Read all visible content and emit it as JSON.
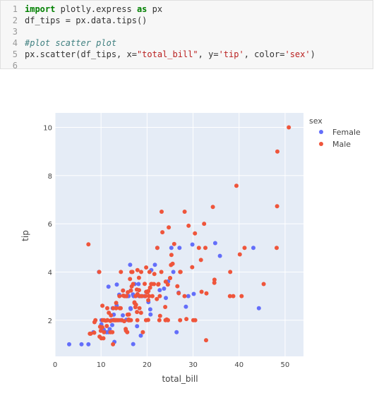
{
  "code_cell": {
    "lines": [
      {
        "no": "1",
        "tokens": [
          {
            "t": "import",
            "c": "kw"
          },
          {
            "t": " plotly.express ",
            "c": "op"
          },
          {
            "t": "as",
            "c": "kw"
          },
          {
            "t": " px",
            "c": "op"
          }
        ]
      },
      {
        "no": "2",
        "tokens": [
          {
            "t": "df_tips = px.data.tips()",
            "c": "op"
          }
        ]
      },
      {
        "no": "3",
        "tokens": []
      },
      {
        "no": "4",
        "tokens": [
          {
            "t": "#plot scatter plot",
            "c": "com"
          }
        ]
      },
      {
        "no": "5",
        "tokens": [
          {
            "t": "px.scatter(df_tips, x=",
            "c": "op"
          },
          {
            "t": "\"total_bill\"",
            "c": "str"
          },
          {
            "t": ", y=",
            "c": "op"
          },
          {
            "t": "'tip'",
            "c": "str"
          },
          {
            "t": ", color=",
            "c": "op"
          },
          {
            "t": "'sex'",
            "c": "str"
          },
          {
            "t": ")",
            "c": "op"
          }
        ]
      },
      {
        "no": "6",
        "tokens": []
      }
    ]
  },
  "chart_data": {
    "type": "scatter",
    "xlabel": "total_bill",
    "ylabel": "tip",
    "xlim": [
      0,
      54
    ],
    "ylim": [
      0.5,
      10.6
    ],
    "xticks": [
      0,
      10,
      20,
      30,
      40,
      50
    ],
    "yticks": [
      2,
      4,
      6,
      8,
      10
    ],
    "grid": true,
    "legend_title": "sex",
    "legend_placement": "right",
    "colors": {
      "plot_bg": "#E5ECF6",
      "grid": "#ffffff",
      "Female": "#636EFA",
      "Male": "#EF553B"
    },
    "series": [
      {
        "name": "Female",
        "points": [
          [
            3.07,
            1.0
          ],
          [
            5.75,
            1.0
          ],
          [
            7.25,
            1.0
          ],
          [
            8.35,
            1.5
          ],
          [
            9.55,
            4.0
          ],
          [
            10.07,
            1.83
          ],
          [
            10.33,
            1.67
          ],
          [
            10.59,
            1.61
          ],
          [
            11.17,
            1.5
          ],
          [
            11.59,
            1.5
          ],
          [
            12.26,
            2.0
          ],
          [
            12.43,
            1.8
          ],
          [
            12.54,
            2.5
          ],
          [
            12.74,
            2.01
          ],
          [
            12.9,
            1.1
          ],
          [
            13.42,
            3.48
          ],
          [
            13.94,
            3.06
          ],
          [
            14.15,
            2.0
          ],
          [
            14.73,
            2.2
          ],
          [
            14.78,
            3.23
          ],
          [
            15.69,
            3.0
          ],
          [
            15.98,
            3.0
          ],
          [
            16.4,
            2.5
          ],
          [
            16.47,
            3.23
          ],
          [
            16.99,
            1.01
          ],
          [
            17.07,
            3.0
          ],
          [
            17.31,
            3.5
          ],
          [
            17.82,
            1.75
          ],
          [
            18.29,
            3.0
          ],
          [
            18.78,
            3.0
          ],
          [
            19.82,
            3.18
          ],
          [
            20.29,
            2.75
          ],
          [
            20.76,
            2.24
          ],
          [
            21.7,
            4.3
          ],
          [
            22.23,
            5.0
          ],
          [
            22.75,
            3.25
          ],
          [
            23.68,
            3.31
          ],
          [
            24.59,
            3.61
          ],
          [
            25.71,
            4.0
          ],
          [
            26.86,
            3.14
          ],
          [
            27.05,
            5.0
          ],
          [
            28.97,
            3.0
          ],
          [
            29.85,
            5.14
          ],
          [
            30.14,
            3.09
          ],
          [
            34.81,
            5.2
          ],
          [
            35.83,
            4.67
          ],
          [
            43.11,
            5.0
          ],
          [
            44.3,
            2.5
          ],
          [
            16.32,
            4.3
          ],
          [
            15.48,
            2.02
          ],
          [
            18.15,
            3.5
          ],
          [
            16.45,
            2.47
          ],
          [
            14.52,
            2.0
          ],
          [
            11.87,
            1.63
          ],
          [
            19.44,
            3.0
          ],
          [
            13.51,
            2.0
          ],
          [
            15.38,
            3.0
          ],
          [
            13.39,
            2.61
          ],
          [
            16.93,
            3.07
          ],
          [
            20.92,
            4.08
          ],
          [
            10.09,
            2.0
          ],
          [
            25.28,
            5.0
          ],
          [
            12.76,
            2.23
          ],
          [
            26.41,
            1.5
          ],
          [
            18.64,
            1.36
          ],
          [
            20.69,
            2.45
          ],
          [
            24.08,
            2.92
          ],
          [
            11.61,
            3.39
          ],
          [
            28.44,
            2.56
          ]
        ]
      },
      {
        "name": "Male",
        "points": [
          [
            7.25,
            5.15
          ],
          [
            7.56,
            1.44
          ],
          [
            7.74,
            1.44
          ],
          [
            8.52,
            1.48
          ],
          [
            8.58,
            1.92
          ],
          [
            8.77,
            2.0
          ],
          [
            9.6,
            4.0
          ],
          [
            9.68,
            1.32
          ],
          [
            9.78,
            1.73
          ],
          [
            9.94,
            1.56
          ],
          [
            10.07,
            1.25
          ],
          [
            10.27,
            1.71
          ],
          [
            10.29,
            2.6
          ],
          [
            10.34,
            2.0
          ],
          [
            10.51,
            1.25
          ],
          [
            10.63,
            2.0
          ],
          [
            10.65,
            1.5
          ],
          [
            11.02,
            1.98
          ],
          [
            11.24,
            1.76
          ],
          [
            11.35,
            2.5
          ],
          [
            11.38,
            2.0
          ],
          [
            11.69,
            2.31
          ],
          [
            12.03,
            1.5
          ],
          [
            12.16,
            2.2
          ],
          [
            12.46,
            1.5
          ],
          [
            12.6,
            1.0
          ],
          [
            12.66,
            2.5
          ],
          [
            12.69,
            2.0
          ],
          [
            13.0,
            2.0
          ],
          [
            13.03,
            2.0
          ],
          [
            13.13,
            2.0
          ],
          [
            13.27,
            2.5
          ],
          [
            13.28,
            2.72
          ],
          [
            13.81,
            2.0
          ],
          [
            14.0,
            3.0
          ],
          [
            14.07,
            2.5
          ],
          [
            14.26,
            2.5
          ],
          [
            14.31,
            4.0
          ],
          [
            14.48,
            2.0
          ],
          [
            14.83,
            3.02
          ],
          [
            15.04,
            1.96
          ],
          [
            15.06,
            3.0
          ],
          [
            15.36,
            1.64
          ],
          [
            15.42,
            1.57
          ],
          [
            15.53,
            3.0
          ],
          [
            15.69,
            1.5
          ],
          [
            15.77,
            2.23
          ],
          [
            15.81,
            3.16
          ],
          [
            16.0,
            2.0
          ],
          [
            16.04,
            2.24
          ],
          [
            16.21,
            2.0
          ],
          [
            16.29,
            3.71
          ],
          [
            16.31,
            2.0
          ],
          [
            16.58,
            4.0
          ],
          [
            16.66,
            3.4
          ],
          [
            16.82,
            4.0
          ],
          [
            16.97,
            3.5
          ],
          [
            17.26,
            2.74
          ],
          [
            17.29,
            2.71
          ],
          [
            17.46,
            2.54
          ],
          [
            17.59,
            2.64
          ],
          [
            17.78,
            3.27
          ],
          [
            17.81,
            2.34
          ],
          [
            17.92,
            4.08
          ],
          [
            18.24,
            3.76
          ],
          [
            18.26,
            3.25
          ],
          [
            18.35,
            2.5
          ],
          [
            18.43,
            3.0
          ],
          [
            18.69,
            2.31
          ],
          [
            18.71,
            4.0
          ],
          [
            18.92,
            3.0
          ],
          [
            19.08,
            1.5
          ],
          [
            19.49,
            3.51
          ],
          [
            19.65,
            3.0
          ],
          [
            19.77,
            2.0
          ],
          [
            19.81,
            4.19
          ],
          [
            20.23,
            2.01
          ],
          [
            20.27,
            2.83
          ],
          [
            20.45,
            3.0
          ],
          [
            20.53,
            4.0
          ],
          [
            20.65,
            3.35
          ],
          [
            20.9,
            3.5
          ],
          [
            21.01,
            3.5
          ],
          [
            21.16,
            3.0
          ],
          [
            21.5,
            3.5
          ],
          [
            21.58,
            3.92
          ],
          [
            22.12,
            2.88
          ],
          [
            22.42,
            3.48
          ],
          [
            22.49,
            3.5
          ],
          [
            22.67,
            2.0
          ],
          [
            22.76,
            3.0
          ],
          [
            22.82,
            2.18
          ],
          [
            23.1,
            4.0
          ],
          [
            23.33,
            5.65
          ],
          [
            23.95,
            2.55
          ],
          [
            24.01,
            2.0
          ],
          [
            24.06,
            3.6
          ],
          [
            24.27,
            2.03
          ],
          [
            24.52,
            3.48
          ],
          [
            24.71,
            5.85
          ],
          [
            25.0,
            3.75
          ],
          [
            25.21,
            4.29
          ],
          [
            25.29,
            4.71
          ],
          [
            25.56,
            4.34
          ],
          [
            25.89,
            5.16
          ],
          [
            26.59,
            3.41
          ],
          [
            26.88,
            3.12
          ],
          [
            27.18,
            2.0
          ],
          [
            27.2,
            4.0
          ],
          [
            27.28,
            4.0
          ],
          [
            28.15,
            3.0
          ],
          [
            28.55,
            2.05
          ],
          [
            29.03,
            5.92
          ],
          [
            29.8,
            4.2
          ],
          [
            30.06,
            2.0
          ],
          [
            30.4,
            5.6
          ],
          [
            30.46,
            2.0
          ],
          [
            31.27,
            5.0
          ],
          [
            31.71,
            4.5
          ],
          [
            31.85,
            3.18
          ],
          [
            32.4,
            6.0
          ],
          [
            32.68,
            5.0
          ],
          [
            32.83,
            1.17
          ],
          [
            32.9,
            3.11
          ],
          [
            34.3,
            6.7
          ],
          [
            34.63,
            3.55
          ],
          [
            34.65,
            3.68
          ],
          [
            38.01,
            3.0
          ],
          [
            38.07,
            4.0
          ],
          [
            38.73,
            3.0
          ],
          [
            39.42,
            7.58
          ],
          [
            40.17,
            4.73
          ],
          [
            40.55,
            3.0
          ],
          [
            41.19,
            5.0
          ],
          [
            45.35,
            3.5
          ],
          [
            48.17,
            5.0
          ],
          [
            48.27,
            6.73
          ],
          [
            48.33,
            9.0
          ],
          [
            50.81,
            10.0
          ],
          [
            23.17,
            6.5
          ],
          [
            25.0,
            3.75
          ],
          [
            16.49,
            2.0
          ],
          [
            17.92,
            3.08
          ],
          [
            21.01,
            3.5
          ],
          [
            14.78,
            3.23
          ],
          [
            19.82,
            3.18
          ],
          [
            13.37,
            2.0
          ],
          [
            15.95,
            2.0
          ],
          [
            20.08,
            3.15
          ],
          [
            16.0,
            2.0
          ],
          [
            20.29,
            3.21
          ],
          [
            17.51,
            3.0
          ],
          [
            22.23,
            5.0
          ],
          [
            28.17,
            6.5
          ],
          [
            24.55,
            2.0
          ],
          [
            16.47,
            3.23
          ],
          [
            11.38,
            2.0
          ],
          [
            12.02,
            1.97
          ],
          [
            17.89,
            2.0
          ],
          [
            15.98,
            2.03
          ]
        ]
      }
    ]
  }
}
